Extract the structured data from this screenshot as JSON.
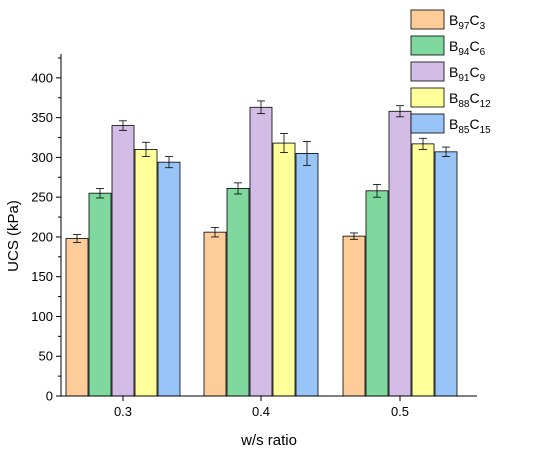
{
  "chart_data": {
    "type": "bar",
    "xlabel": "w/s ratio",
    "ylabel": "UCS (kPa)",
    "ylim": [
      0,
      430
    ],
    "yticks": [
      0,
      50,
      100,
      150,
      200,
      250,
      300,
      350,
      400
    ],
    "yticks_text": [
      "0",
      "50",
      "100",
      "150",
      "200",
      "250",
      "300",
      "350",
      "400"
    ],
    "categories": [
      "0.3",
      "0.4",
      "0.5"
    ],
    "grid": false,
    "legend_position": "top-right",
    "series": [
      {
        "name": "B97C3",
        "legend": {
          "base": "B",
          "sub1": "97",
          "mid": "C",
          "sub2": "3"
        },
        "color": "#fdcc99",
        "values": [
          198,
          206,
          201
        ],
        "errors": [
          5,
          6,
          4
        ]
      },
      {
        "name": "B94C6",
        "legend": {
          "base": "B",
          "sub1": "94",
          "mid": "C",
          "sub2": "6"
        },
        "color": "#7fd99e",
        "values": [
          255,
          261,
          258
        ],
        "errors": [
          6,
          7,
          8
        ]
      },
      {
        "name": "B91C9",
        "legend": {
          "base": "B",
          "sub1": "91",
          "mid": "C",
          "sub2": "9"
        },
        "color": "#d3bde6",
        "values": [
          340,
          363,
          358
        ],
        "errors": [
          6,
          8,
          7
        ]
      },
      {
        "name": "B88C12",
        "legend": {
          "base": "B",
          "sub1": "88",
          "mid": "C",
          "sub2": "12"
        },
        "color": "#ffff99",
        "values": [
          310,
          318,
          317
        ],
        "errors": [
          9,
          12,
          7
        ]
      },
      {
        "name": "B85C15",
        "legend": {
          "base": "B",
          "sub1": "85",
          "mid": "C",
          "sub2": "15"
        },
        "color": "#99c4f7",
        "values": [
          294,
          305,
          307
        ],
        "errors": [
          7,
          15,
          6
        ]
      }
    ]
  }
}
